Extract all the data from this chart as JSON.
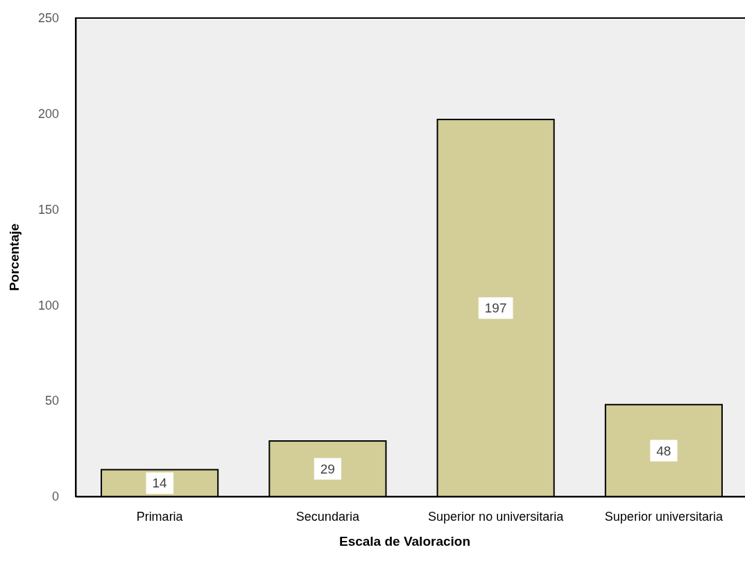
{
  "chart_data": {
    "type": "bar",
    "xlabel": "Escala de Valoracion",
    "ylabel": "Porcentaje",
    "categories": [
      "Primaria",
      "Secundaria",
      "Superior no universitaria",
      "Superior universitaria"
    ],
    "values": [
      14,
      29,
      197,
      48
    ],
    "color": "#d3ce98",
    "ylim": [
      0,
      250
    ],
    "yticks": [
      0,
      50,
      100,
      150,
      200,
      250
    ],
    "data_labels": true
  }
}
